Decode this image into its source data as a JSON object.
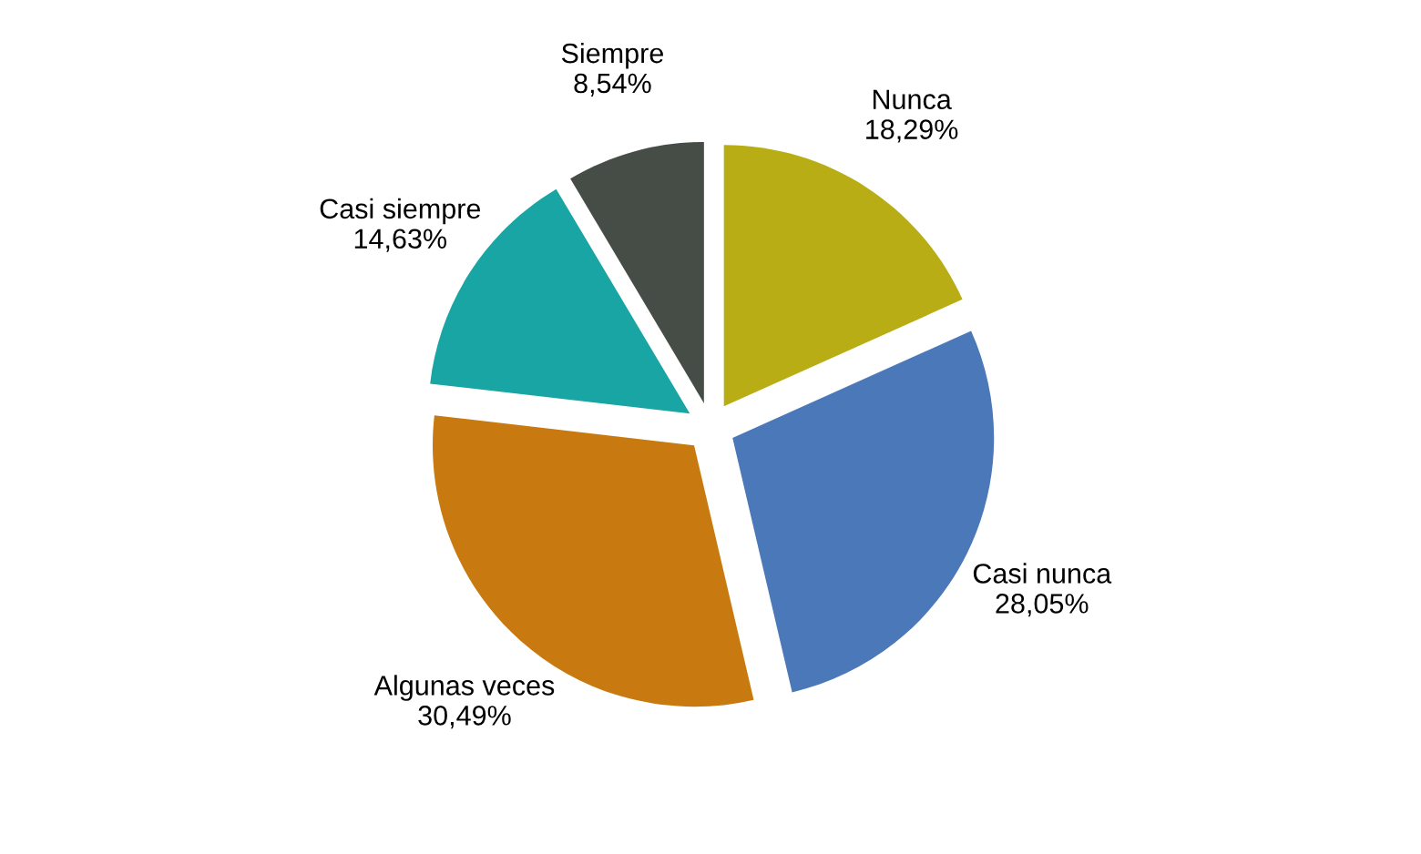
{
  "chart_data": {
    "type": "pie",
    "categories": [
      "Nunca",
      "Casi nunca",
      "Algunas veces",
      "Casi siempre",
      "Siempre"
    ],
    "values": [
      18.29,
      28.05,
      30.49,
      14.63,
      8.54
    ],
    "value_labels": [
      "18,29%",
      "28,05%",
      "30,49%",
      "14,63%",
      "8,54%"
    ],
    "colors": [
      "#b8ad14",
      "#4a78b8",
      "#c87a10",
      "#1aa5a5",
      "#464c46"
    ],
    "legend": false
  }
}
